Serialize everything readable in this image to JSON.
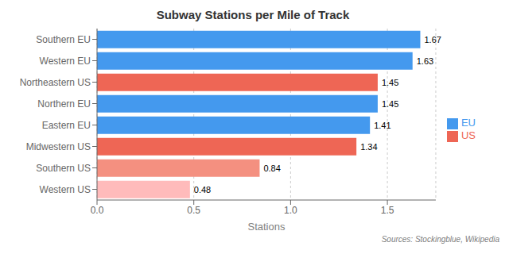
{
  "chart_data": {
    "type": "bar",
    "title": "Subway Stations per Mile of Track",
    "orientation": "horizontal",
    "stacked": true,
    "x_label": "Stations",
    "categories": [
      "Southern EU",
      "Western EU",
      "Northeastern US",
      "Northern EU",
      "Eastern EU",
      "Midwestern US",
      "Southern US",
      "Western US"
    ],
    "series": [
      {
        "name": "EU",
        "color": "#4499EE",
        "values": [
          1.67,
          1.63,
          null,
          1.45,
          1.41,
          null,
          null,
          null
        ]
      },
      {
        "name": "US",
        "color": "#EE6655",
        "colors": [
          null,
          null,
          "#EE6655",
          null,
          null,
          "#EE6655",
          "#F49080",
          "#FFBBBB"
        ],
        "values": [
          null,
          null,
          1.45,
          null,
          null,
          1.34,
          0.84,
          0.48
        ]
      }
    ],
    "xlim": [
      0.0,
      1.75
    ],
    "xticks": [
      {
        "value": 0.0,
        "label": "0.0"
      },
      {
        "value": 0.5,
        "label": "0.5"
      },
      {
        "value": 1.0,
        "label": "1.0"
      },
      {
        "value": 1.5,
        "label": "1.5"
      }
    ],
    "grid": true,
    "legend": "right",
    "data_labels": true,
    "annotations": [
      "Sources: Stockingblue, Wikipedia"
    ]
  }
}
